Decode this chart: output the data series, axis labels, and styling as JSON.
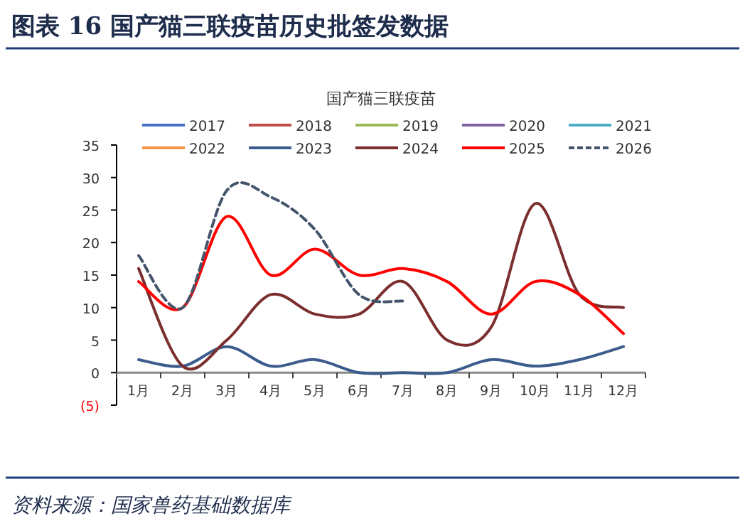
{
  "chart_data": {
    "type": "line",
    "title": "图表 16 国产猫三联疫苗历史批签发数据",
    "subtitle": "国产猫三联疫苗",
    "categories": [
      "1月",
      "2月",
      "3月",
      "4月",
      "5月",
      "6月",
      "7月",
      "8月",
      "9月",
      "10月",
      "11月",
      "12月"
    ],
    "series": [
      {
        "name": "2017",
        "color": "#4472c4",
        "values": [
          null,
          null,
          null,
          null,
          null,
          null,
          null,
          null,
          null,
          null,
          null,
          null
        ]
      },
      {
        "name": "2018",
        "color": "#c0504d",
        "values": [
          null,
          null,
          null,
          null,
          null,
          null,
          null,
          null,
          null,
          null,
          null,
          null
        ]
      },
      {
        "name": "2019",
        "color": "#9bbb59",
        "values": [
          null,
          null,
          null,
          null,
          null,
          null,
          null,
          null,
          null,
          null,
          null,
          null
        ]
      },
      {
        "name": "2020",
        "color": "#8064a2",
        "values": [
          null,
          null,
          null,
          null,
          null,
          null,
          null,
          null,
          null,
          null,
          null,
          null
        ]
      },
      {
        "name": "2021",
        "color": "#4bacc6",
        "values": [
          null,
          null,
          null,
          null,
          null,
          null,
          null,
          null,
          null,
          null,
          null,
          null
        ]
      },
      {
        "name": "2022",
        "color": "#f79646",
        "values": [
          null,
          null,
          null,
          null,
          null,
          null,
          null,
          null,
          null,
          null,
          null,
          null
        ]
      },
      {
        "name": "2023",
        "color": "#3b5c8c",
        "values": [
          2,
          1,
          4,
          1,
          2,
          0,
          0,
          0,
          2,
          1,
          2,
          4
        ]
      },
      {
        "name": "2024",
        "color": "#7b2e2e",
        "values": [
          16,
          1,
          5,
          12,
          9,
          9,
          14,
          5,
          7,
          26,
          12,
          10
        ]
      },
      {
        "name": "2025",
        "color": "#ff0000",
        "values": [
          14,
          10,
          24,
          15,
          19,
          15,
          16,
          14,
          9,
          14,
          12,
          6
        ]
      },
      {
        "name": "2026",
        "color": "#44546a",
        "line_style": "dashed",
        "values": [
          18,
          10,
          28,
          27,
          22,
          12,
          11,
          null,
          null,
          null,
          null,
          null
        ]
      }
    ],
    "ylim": [
      -5,
      35
    ],
    "yticks": [
      {
        "value": -5,
        "label": "(5)"
      },
      0,
      5,
      10,
      15,
      20,
      25,
      30,
      35
    ],
    "legend": "top",
    "grid": false,
    "marker": "none",
    "annotations": [
      "资料来源：国家兽药基础数据库"
    ]
  }
}
